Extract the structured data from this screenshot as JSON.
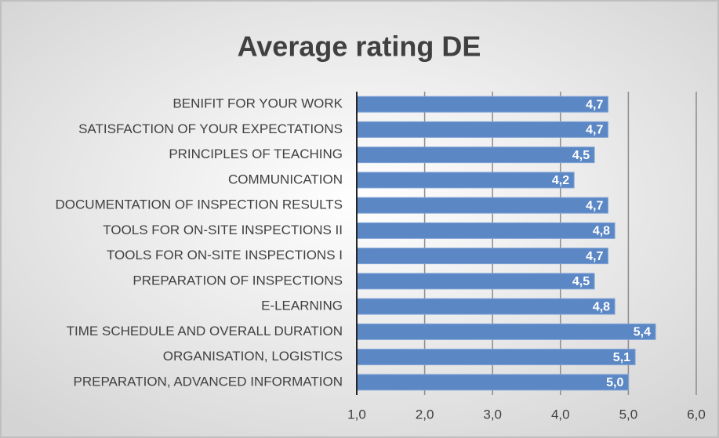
{
  "chart_data": {
    "type": "barh",
    "title": "Average rating DE",
    "categories": [
      "BENIFIT FOR YOUR WORK",
      "SATISFACTION OF YOUR EXPECTATIONS",
      "PRINCIPLES OF TEACHING",
      "COMMUNICATION",
      "DOCUMENTATION OF INSPECTION RESULTS",
      "TOOLS FOR ON-SITE INSPECTIONS II",
      "TOOLS FOR ON-SITE INSPECTIONS I",
      "PREPARATION OF INSPECTIONS",
      "E-LEARNING",
      "TIME SCHEDULE AND OVERALL DURATION",
      "ORGANISATION, LOGISTICS",
      "PREPARATION, ADVANCED INFORMATION"
    ],
    "values": [
      4.7,
      4.7,
      4.5,
      4.2,
      4.7,
      4.8,
      4.7,
      4.5,
      4.8,
      5.4,
      5.1,
      5.0
    ],
    "value_labels": [
      "4,7",
      "4,7",
      "4,5",
      "4,2",
      "4,7",
      "4,8",
      "4,7",
      "4,5",
      "4,8",
      "5,4",
      "5,1",
      "5,0"
    ],
    "color": "#5b87c5",
    "xlim": [
      1,
      6
    ],
    "xticks": [
      {
        "value": 1,
        "label": "1,0"
      },
      {
        "value": 2,
        "label": "2,0"
      },
      {
        "value": 3,
        "label": "3,0"
      },
      {
        "value": 4,
        "label": "4,0"
      },
      {
        "value": 5,
        "label": "5,0"
      },
      {
        "value": 6,
        "label": "6,0"
      }
    ],
    "grid": true
  }
}
